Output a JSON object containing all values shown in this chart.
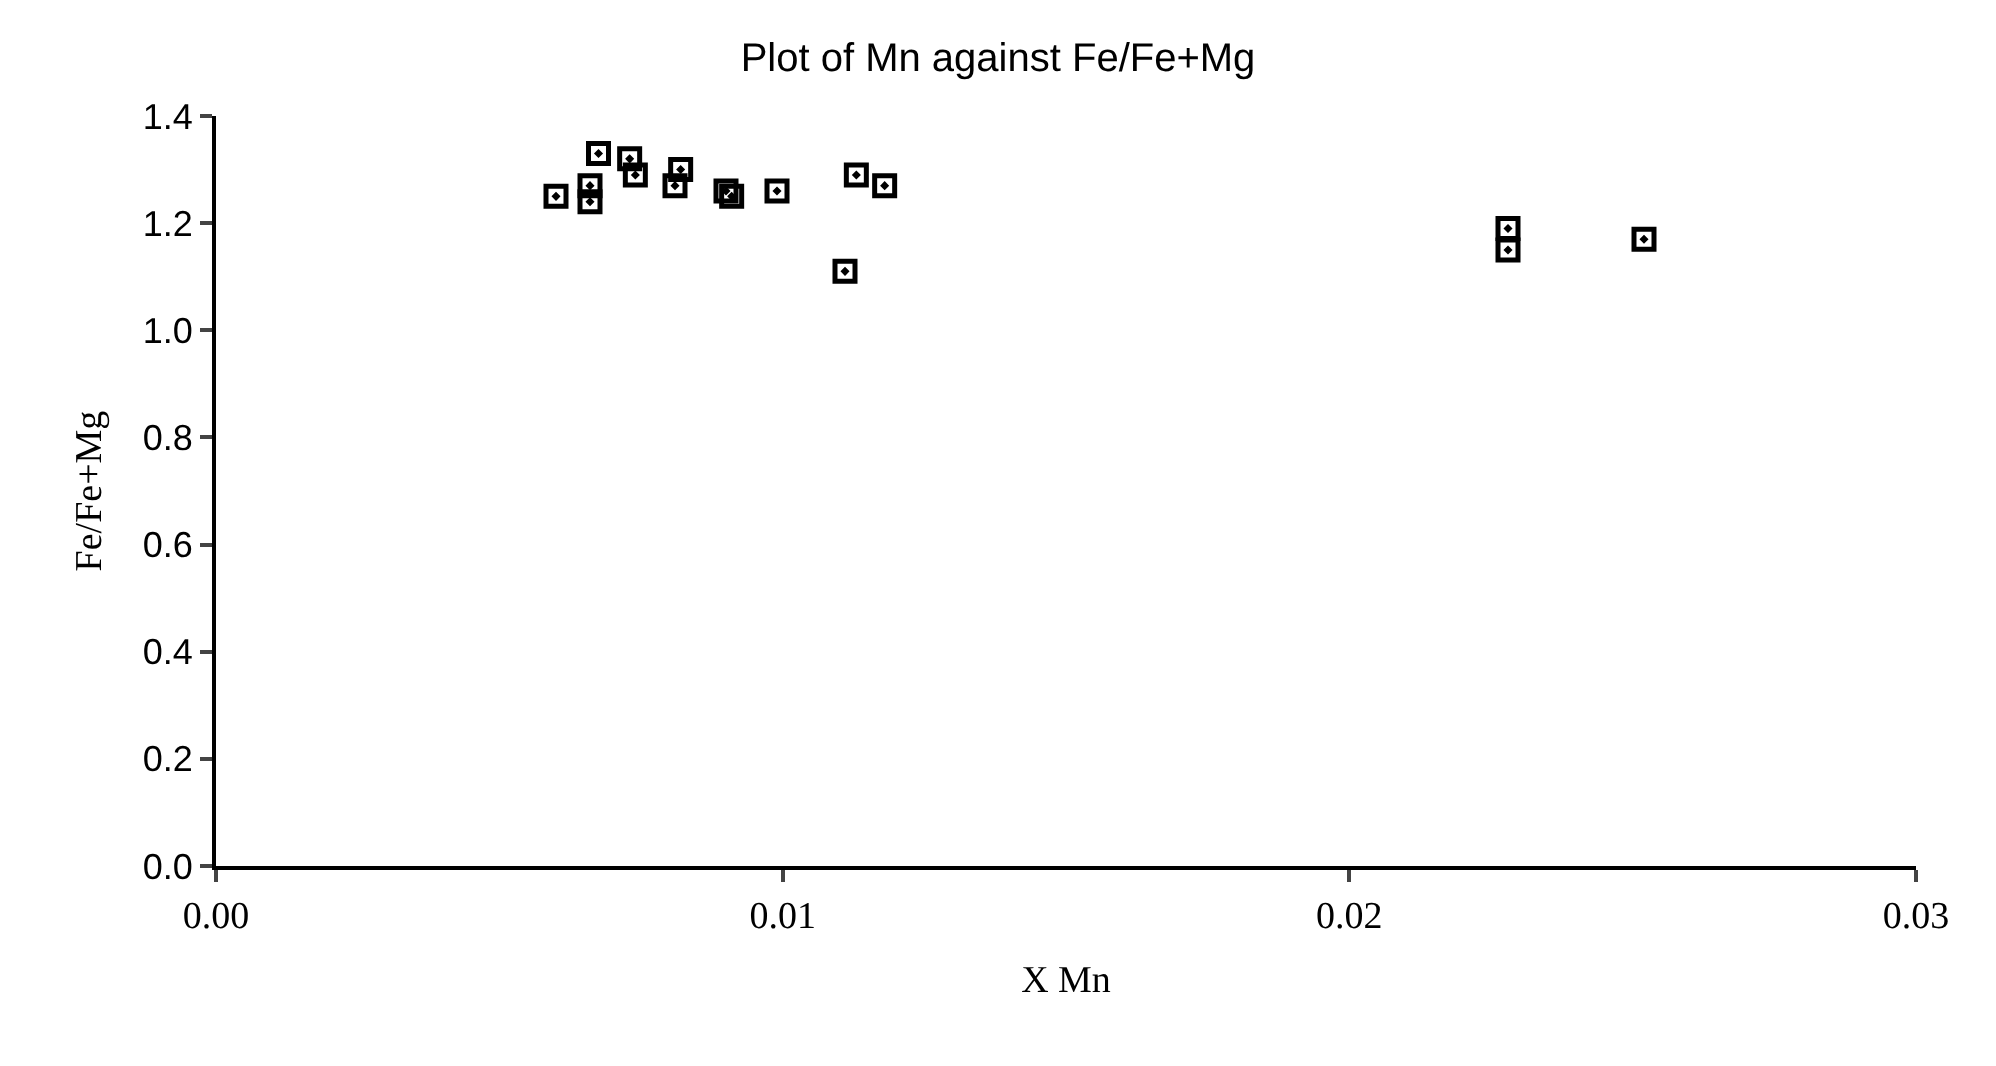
{
  "chart_data": {
    "type": "scatter",
    "title": "Plot of Mn against Fe/Fe+Mg",
    "xlabel": "X Mn",
    "ylabel": "Fe/Fe+Mg",
    "x": [
      0.006,
      0.0066,
      0.0066,
      0.00675,
      0.0073,
      0.0074,
      0.0081,
      0.0082,
      0.009,
      0.0091,
      0.0099,
      0.0113,
      0.0118,
      0.0111,
      0.0228,
      0.0228,
      0.0252
    ],
    "series": [
      {
        "color": "#000000",
        "values": [
          1.25,
          1.27,
          1.24,
          1.33,
          1.32,
          1.29,
          1.27,
          1.3,
          1.26,
          1.25,
          1.26,
          1.29,
          1.27,
          1.11,
          1.19,
          1.15,
          1.17
        ]
      }
    ],
    "xlim": [
      0,
      0.03
    ],
    "xticks": [
      {
        "value": 0,
        "label": "0.00"
      },
      {
        "value": 0.01,
        "label": "0.01"
      },
      {
        "value": 0.02,
        "label": "0.02"
      },
      {
        "value": 0.03,
        "label": "0.03"
      }
    ],
    "ylim": [
      0,
      1.4
    ],
    "yticks": [
      {
        "value": 0,
        "label": "0.0"
      },
      {
        "value": 0.2,
        "label": "0.2"
      },
      {
        "value": 0.4,
        "label": "0.4"
      },
      {
        "value": 0.6,
        "label": "0.6"
      },
      {
        "value": 0.8,
        "label": "0.8"
      },
      {
        "value": 1.0,
        "label": "1.0"
      },
      {
        "value": 1.2,
        "label": "1.2"
      },
      {
        "value": 1.4,
        "label": "1.4"
      }
    ],
    "marker": "square"
  }
}
